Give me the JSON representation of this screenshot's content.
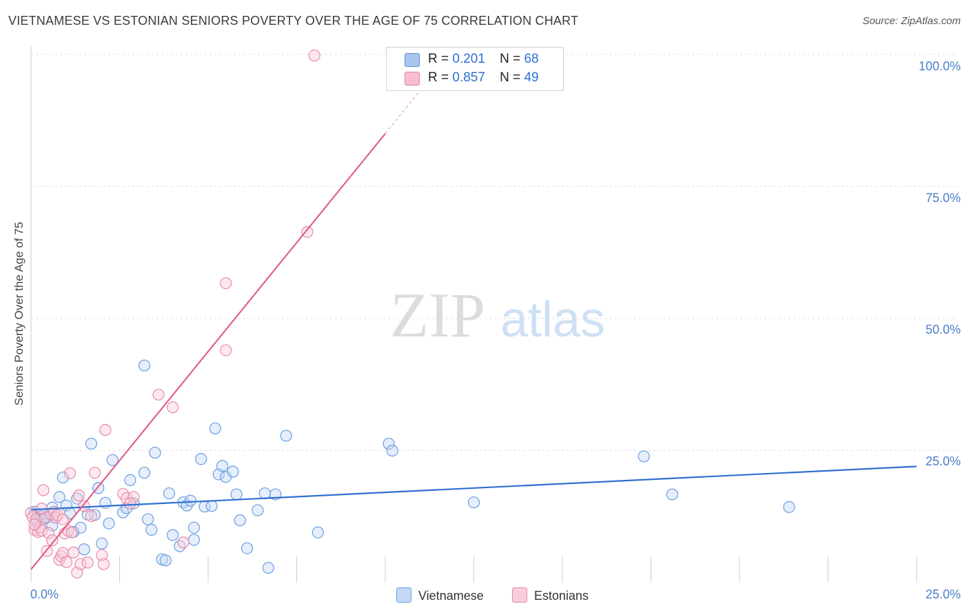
{
  "title": "VIETNAMESE VS ESTONIAN SENIORS POVERTY OVER THE AGE OF 75 CORRELATION CHART",
  "source": "Source: ZipAtlas.com",
  "watermark": {
    "zip": "ZIP",
    "atlas": "atlas"
  },
  "legend_top": [
    {
      "r_label": "R =",
      "r_value": "0.201",
      "n_label": "N =",
      "n_value": "68",
      "color": "#a9c6f0",
      "border": "#5b8fd6"
    },
    {
      "r_label": "R =",
      "r_value": "0.857",
      "n_label": "N =",
      "n_value": "49",
      "color": "#f6bfd1",
      "border": "#e07fa0"
    }
  ],
  "legend_bottom": [
    "Vietnamese",
    "Estonians"
  ],
  "chart_data": {
    "type": "scatter",
    "title": "VIETNAMESE VS ESTONIAN SENIORS POVERTY OVER THE AGE OF 75 CORRELATION CHART",
    "xlabel": "",
    "ylabel": "Seniors Poverty Over the Age of 75",
    "xlim": [
      0,
      25
    ],
    "ylim": [
      0,
      100
    ],
    "x_tick_labels": [
      "0.0%",
      "25.0%"
    ],
    "y_tick_labels": [
      "100.0%",
      "75.0%",
      "50.0%",
      "25.0%"
    ],
    "y_ticks": [
      100,
      75,
      50,
      25
    ],
    "grid": true,
    "series": [
      {
        "name": "Vietnamese",
        "color": "#6a9de0",
        "fill": "#c5d9f5",
        "trend": {
          "x": [
            0,
            25
          ],
          "y": [
            13.8,
            22.0
          ],
          "color": "#2f6fd0"
        },
        "points": [
          [
            0.1,
            13.4
          ],
          [
            0.2,
            12.8
          ],
          [
            0.3,
            12.6
          ],
          [
            0.4,
            13.0
          ],
          [
            0.5,
            12.4
          ],
          [
            0.6,
            14.2
          ],
          [
            0.6,
            10.8
          ],
          [
            0.7,
            12.3
          ],
          [
            0.8,
            16.2
          ],
          [
            0.9,
            19.9
          ],
          [
            1.0,
            14.6
          ],
          [
            1.1,
            13.1
          ],
          [
            1.2,
            9.6
          ],
          [
            1.3,
            15.9
          ],
          [
            1.4,
            10.4
          ],
          [
            1.5,
            6.3
          ],
          [
            1.7,
            26.3
          ],
          [
            1.8,
            12.8
          ],
          [
            1.9,
            17.9
          ],
          [
            2.0,
            7.4
          ],
          [
            2.1,
            15.1
          ],
          [
            2.2,
            11.2
          ],
          [
            2.3,
            23.2
          ],
          [
            2.6,
            13.3
          ],
          [
            2.7,
            14.1
          ],
          [
            2.8,
            19.4
          ],
          [
            2.9,
            15.0
          ],
          [
            3.2,
            20.8
          ],
          [
            3.2,
            41.1
          ],
          [
            3.3,
            12.0
          ],
          [
            3.4,
            10.0
          ],
          [
            3.5,
            24.6
          ],
          [
            3.7,
            4.4
          ],
          [
            3.8,
            4.2
          ],
          [
            3.9,
            16.9
          ],
          [
            4.2,
            6.9
          ],
          [
            4.3,
            15.2
          ],
          [
            4.4,
            14.6
          ],
          [
            4.5,
            15.5
          ],
          [
            4.6,
            8.1
          ],
          [
            4.6,
            10.4
          ],
          [
            4.8,
            23.4
          ],
          [
            4.9,
            14.4
          ],
          [
            5.1,
            14.5
          ],
          [
            5.2,
            29.2
          ],
          [
            5.3,
            20.5
          ],
          [
            5.4,
            22.1
          ],
          [
            5.5,
            20.0
          ],
          [
            5.7,
            21.0
          ],
          [
            5.8,
            16.7
          ],
          [
            5.9,
            11.8
          ],
          [
            6.1,
            6.5
          ],
          [
            6.4,
            13.7
          ],
          [
            6.6,
            16.9
          ],
          [
            6.7,
            2.8
          ],
          [
            6.9,
            16.7
          ],
          [
            7.2,
            27.8
          ],
          [
            8.1,
            9.5
          ],
          [
            10.1,
            26.3
          ],
          [
            10.2,
            25.0
          ],
          [
            12.5,
            15.2
          ],
          [
            17.3,
            23.9
          ],
          [
            18.1,
            16.7
          ],
          [
            21.4,
            14.3
          ],
          [
            0.15,
            11.5
          ],
          [
            0.35,
            12.1
          ],
          [
            1.6,
            12.9
          ],
          [
            4.0,
            9.0
          ]
        ]
      },
      {
        "name": "Estonians",
        "color": "#e88aa8",
        "fill": "#f8cedc",
        "trend": {
          "x": [
            0,
            10.0
          ],
          "y": [
            2.5,
            85.0
          ],
          "color": "#e0608a",
          "dashed_to": [
            11.5,
            97.5
          ]
        },
        "points": [
          [
            0.0,
            13.2
          ],
          [
            0.05,
            12.4
          ],
          [
            0.1,
            10.0
          ],
          [
            0.15,
            12.0
          ],
          [
            0.2,
            9.6
          ],
          [
            0.25,
            10.5
          ],
          [
            0.3,
            9.8
          ],
          [
            0.35,
            17.5
          ],
          [
            0.4,
            12.3
          ],
          [
            0.45,
            6.0
          ],
          [
            0.5,
            9.4
          ],
          [
            0.55,
            13.0
          ],
          [
            0.6,
            8.0
          ],
          [
            0.65,
            13.4
          ],
          [
            0.7,
            12.3
          ],
          [
            0.75,
            12.8
          ],
          [
            0.8,
            4.3
          ],
          [
            0.85,
            5.0
          ],
          [
            0.9,
            5.6
          ],
          [
            0.95,
            9.3
          ],
          [
            1.0,
            3.9
          ],
          [
            1.05,
            9.8
          ],
          [
            1.1,
            20.7
          ],
          [
            1.15,
            9.5
          ],
          [
            1.2,
            5.7
          ],
          [
            1.3,
            1.9
          ],
          [
            1.35,
            16.5
          ],
          [
            1.4,
            3.5
          ],
          [
            1.5,
            14.5
          ],
          [
            1.6,
            3.8
          ],
          [
            1.8,
            20.8
          ],
          [
            2.0,
            5.2
          ],
          [
            2.05,
            3.5
          ],
          [
            2.1,
            28.9
          ],
          [
            2.6,
            16.8
          ],
          [
            2.7,
            16.0
          ],
          [
            2.9,
            16.2
          ],
          [
            3.6,
            35.6
          ],
          [
            4.0,
            33.2
          ],
          [
            4.3,
            7.6
          ],
          [
            5.5,
            44.0
          ],
          [
            5.5,
            56.7
          ],
          [
            7.8,
            66.4
          ],
          [
            8.0,
            99.8
          ],
          [
            0.1,
            11.0
          ],
          [
            0.3,
            14.0
          ],
          [
            0.9,
            12.0
          ],
          [
            1.7,
            12.6
          ],
          [
            2.8,
            15.0
          ]
        ]
      }
    ]
  }
}
